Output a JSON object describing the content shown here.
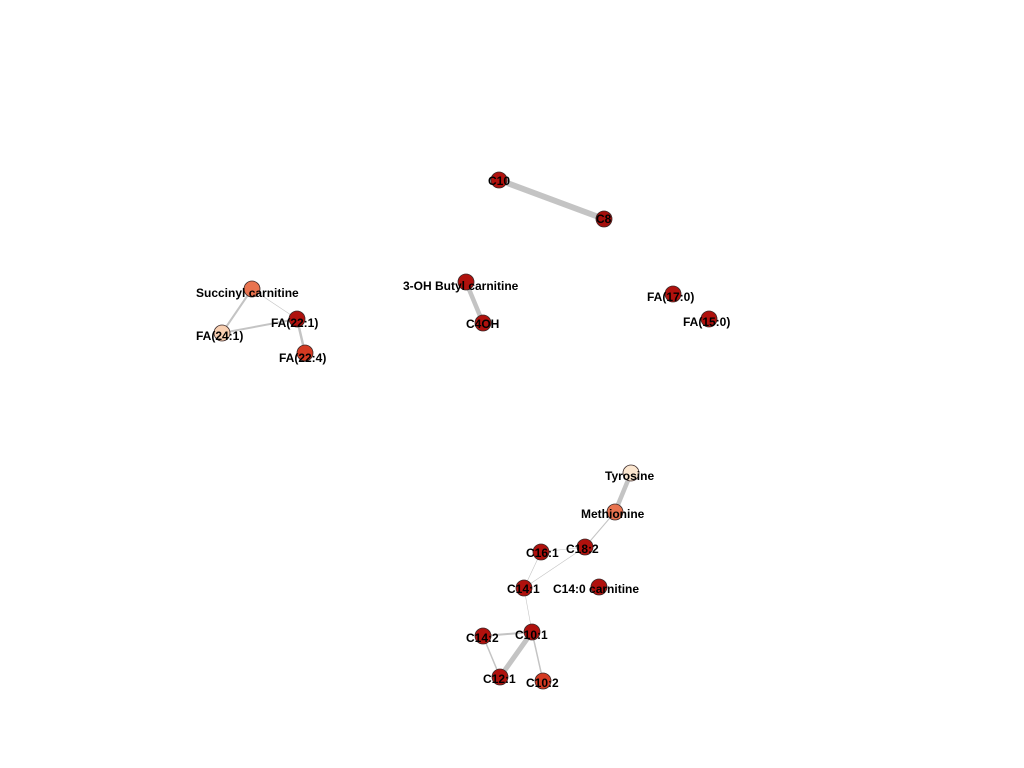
{
  "network": {
    "nodes": [
      {
        "id": "C10",
        "label": "C10",
        "color": "#b0110d"
      },
      {
        "id": "C8",
        "label": "C8",
        "color": "#a50f0c"
      },
      {
        "id": "3ohbutyryl",
        "label": "3-OH Butyl carnitine",
        "color": "#b0110d"
      },
      {
        "id": "C4OH",
        "label": "C4OH",
        "color": "#b0110d"
      },
      {
        "id": "succinyl",
        "label": "Succinyl carnitine",
        "color": "#e8734f"
      },
      {
        "id": "FA221",
        "label": "FA(22:1)",
        "color": "#b0110d"
      },
      {
        "id": "FA241",
        "label": "FA(24:1)",
        "color": "#f8cfb1"
      },
      {
        "id": "FA224",
        "label": "FA(22:4)",
        "color": "#d43a22"
      },
      {
        "id": "FA170",
        "label": "FA(17:0)",
        "color": "#b0110d"
      },
      {
        "id": "FA150",
        "label": "FA(15:0)",
        "color": "#b0110d"
      },
      {
        "id": "tyrosine",
        "label": "Tyrosine",
        "color": "#fbe6cf"
      },
      {
        "id": "methionine",
        "label": "Methionine",
        "color": "#e8734f"
      },
      {
        "id": "C161",
        "label": "C16:1",
        "color": "#b0110d"
      },
      {
        "id": "C182",
        "label": "C18:2",
        "color": "#b0110d"
      },
      {
        "id": "C141",
        "label": "C14:1",
        "color": "#b0110d"
      },
      {
        "id": "C140carn",
        "label": "C14:0 carnitine",
        "color": "#b0110d"
      },
      {
        "id": "C142",
        "label": "C14:2",
        "color": "#b0110d"
      },
      {
        "id": "C101",
        "label": "C10:1",
        "color": "#b0110d"
      },
      {
        "id": "C121",
        "label": "C12:1",
        "color": "#b0110d"
      },
      {
        "id": "C102",
        "label": "C10:2",
        "color": "#d43a22"
      }
    ],
    "edges": [
      {
        "source": "C10",
        "target": "C8",
        "weight": 6
      },
      {
        "source": "3ohbutyryl",
        "target": "C4OH",
        "weight": 4.5
      },
      {
        "source": "succinyl",
        "target": "FA241",
        "weight": 2
      },
      {
        "source": "FA241",
        "target": "FA221",
        "weight": 2
      },
      {
        "source": "succinyl",
        "target": "FA221",
        "weight": 0.6
      },
      {
        "source": "FA221",
        "target": "FA224",
        "weight": 2.5
      },
      {
        "source": "tyrosine",
        "target": "methionine",
        "weight": 4.5
      },
      {
        "source": "methionine",
        "target": "C182",
        "weight": 1
      },
      {
        "source": "C182",
        "target": "C161",
        "weight": 0.6
      },
      {
        "source": "C182",
        "target": "C141",
        "weight": 0.6
      },
      {
        "source": "C161",
        "target": "C141",
        "weight": 0.6
      },
      {
        "source": "C141",
        "target": "C101",
        "weight": 0.6
      },
      {
        "source": "C142",
        "target": "C101",
        "weight": 2
      },
      {
        "source": "C142",
        "target": "C121",
        "weight": 1.5
      },
      {
        "source": "C101",
        "target": "C121",
        "weight": 5
      },
      {
        "source": "C101",
        "target": "C102",
        "weight": 1.5
      }
    ]
  }
}
